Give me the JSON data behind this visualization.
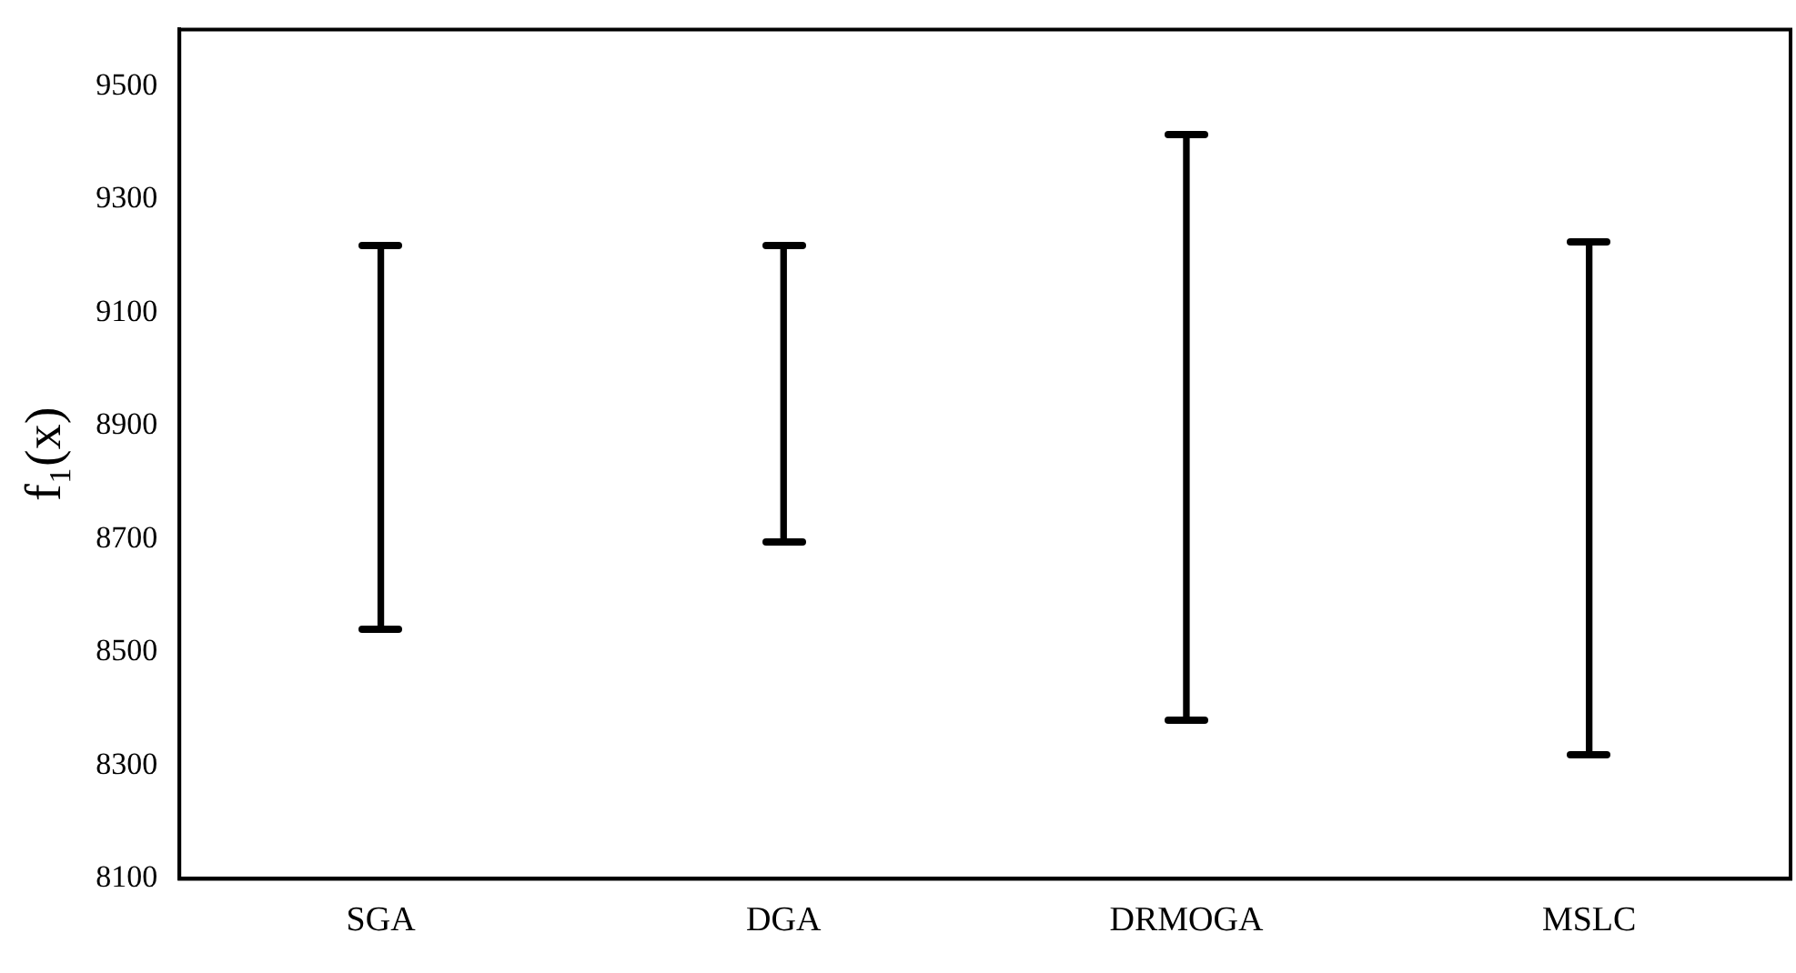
{
  "chart_data": {
    "type": "bar",
    "ylabel": "f₁(x)",
    "categories": [
      "SGA",
      "DGA",
      "DRMOGA",
      "MSLC"
    ],
    "base": [
      8540,
      8695,
      8380,
      8320
    ],
    "values": [
      680,
      525,
      1035,
      905
    ],
    "color": "#000000",
    "ylim": [
      8100,
      9600
    ],
    "yticks": [
      8100,
      8300,
      8500,
      8700,
      8900,
      9100,
      9300,
      9500
    ],
    "grid": false,
    "legend": false
  }
}
